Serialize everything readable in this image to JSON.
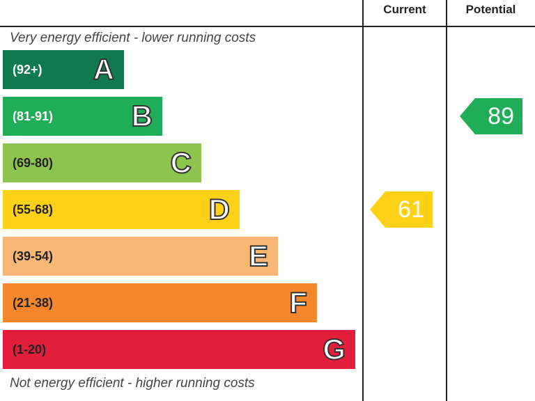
{
  "header": {
    "current_label": "Current",
    "potential_label": "Potential"
  },
  "notes": {
    "top": "Very energy efficient - lower running costs",
    "bottom": "Not energy efficient - higher running costs"
  },
  "chart_data": {
    "type": "bar",
    "bands": [
      {
        "letter": "A",
        "range": "(92+)",
        "color": "#0f7a50"
      },
      {
        "letter": "B",
        "range": "(81-91)",
        "color": "#1fad58"
      },
      {
        "letter": "C",
        "range": "(69-80)",
        "color": "#8dc44e"
      },
      {
        "letter": "D",
        "range": "(55-68)",
        "color": "#fcd116"
      },
      {
        "letter": "E",
        "range": "(39-54)",
        "color": "#f8b774"
      },
      {
        "letter": "F",
        "range": "(21-38)",
        "color": "#f4862b"
      },
      {
        "letter": "G",
        "range": "(1-20)",
        "color": "#e31d3c"
      }
    ],
    "current": {
      "value": 61,
      "band": "D",
      "color": "#fcd116"
    },
    "potential": {
      "value": 89,
      "band": "B",
      "color": "#1fad58"
    }
  }
}
